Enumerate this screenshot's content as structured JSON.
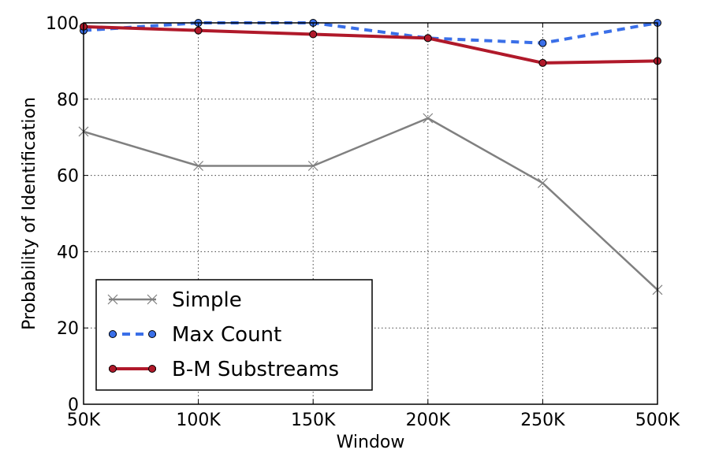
{
  "chart_data": {
    "type": "line",
    "categories": [
      "50K",
      "100K",
      "150K",
      "200K",
      "250K",
      "500K"
    ],
    "xlabel": "Window",
    "ylabel": "Probability of Identification",
    "ylim": [
      0,
      100
    ],
    "yticks": [
      0,
      20,
      40,
      60,
      80,
      100
    ],
    "grid": true,
    "legend_position": "lower-left",
    "series": [
      {
        "name": "Simple",
        "values": [
          71.5,
          62.5,
          62.5,
          75,
          58,
          30
        ],
        "color": "#808080",
        "marker": "x",
        "style": "solid"
      },
      {
        "name": "Max Count",
        "values": [
          98,
          100,
          100,
          96,
          94.7,
          100
        ],
        "color": "#3a6fe8",
        "marker": "circle",
        "style": "dashed"
      },
      {
        "name": "B-M Substreams",
        "values": [
          99,
          98,
          97,
          96,
          89.5,
          90
        ],
        "color": "#b0192a",
        "marker": "circle",
        "style": "solid"
      }
    ]
  }
}
